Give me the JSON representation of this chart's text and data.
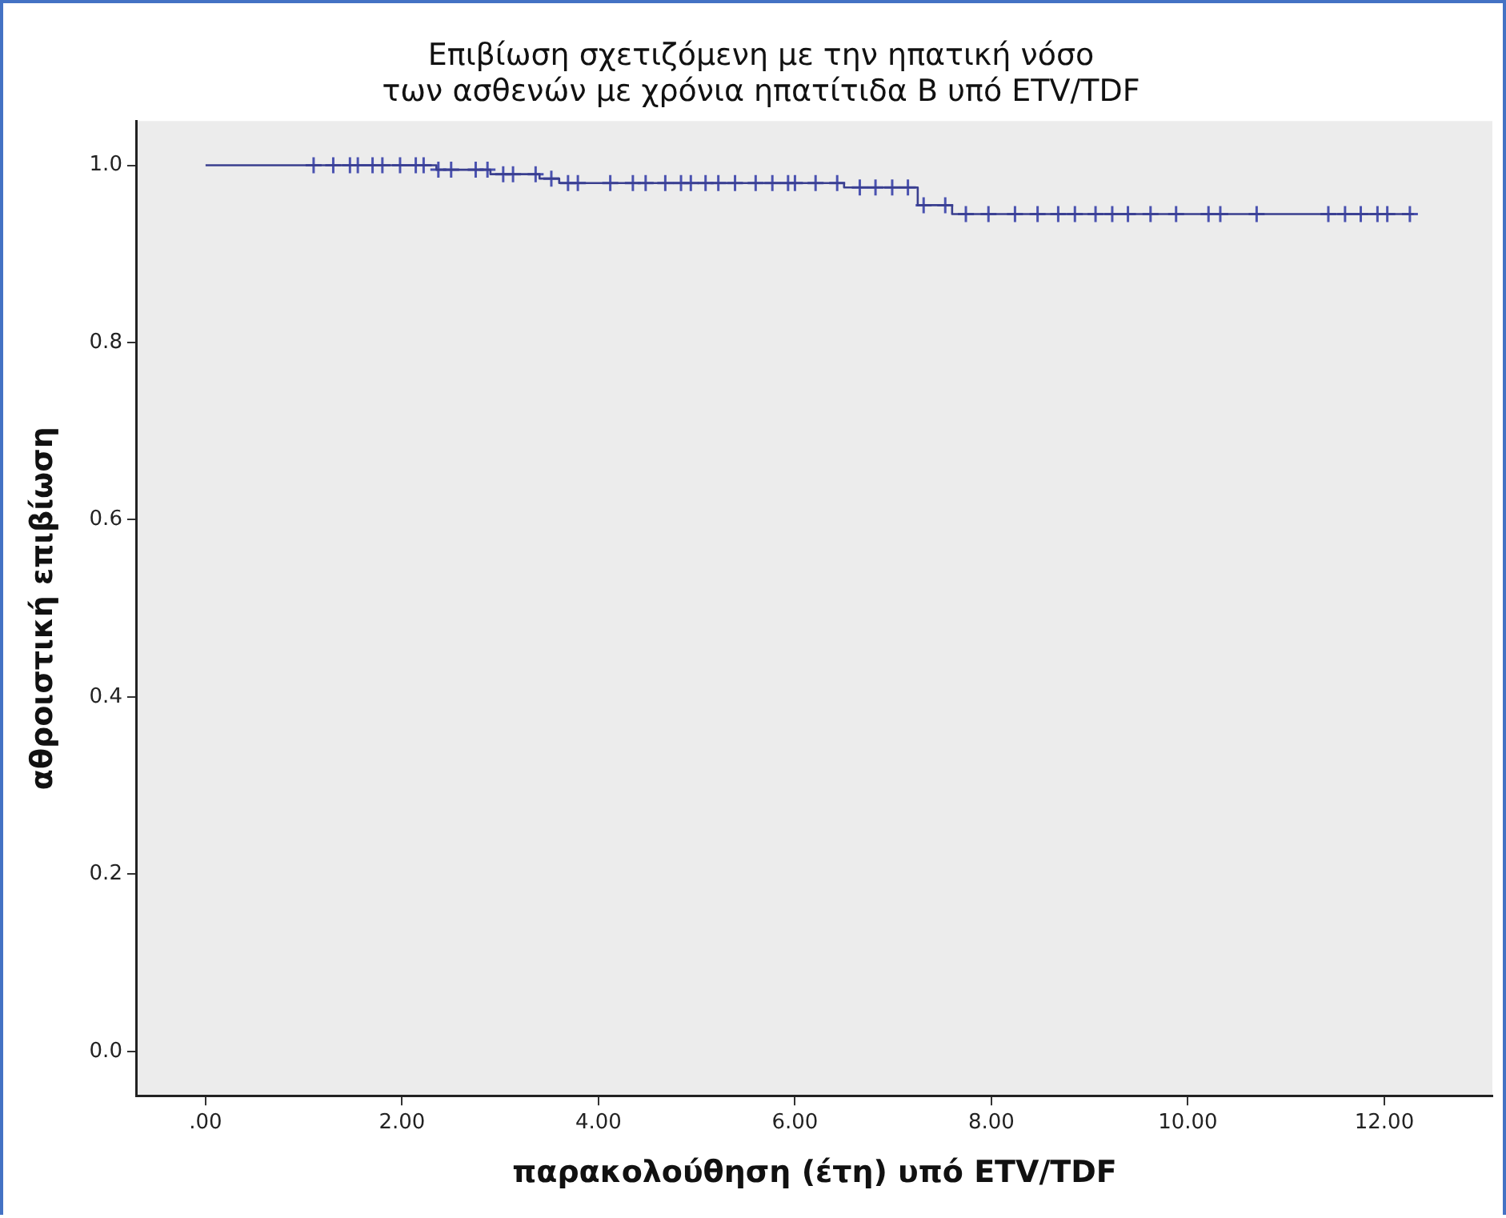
{
  "chart_data": {
    "type": "step",
    "title": "Επιβίωση σχετιζόμενη με την ηπατική νόσο\nτων ασθενών με χρόνια ηπατίτιδα B υπό ETV/TDF",
    "xlabel": "παρακολούθηση (έτη) υπό ETV/TDF",
    "ylabel": "αθροιστική επιβίωση",
    "xlim": [
      -0.7,
      13.1
    ],
    "ylim": [
      -0.05,
      1.05
    ],
    "xticks": [
      {
        "value": 0,
        "label": ".00"
      },
      {
        "value": 2,
        "label": "2.00"
      },
      {
        "value": 4,
        "label": "4.00"
      },
      {
        "value": 6,
        "label": "6.00"
      },
      {
        "value": 8,
        "label": "8.00"
      },
      {
        "value": 10,
        "label": "10.00"
      },
      {
        "value": 12,
        "label": "12.00"
      }
    ],
    "yticks": [
      {
        "value": 0,
        "label": "0.0"
      },
      {
        "value": 0.2,
        "label": "0.2"
      },
      {
        "value": 0.4,
        "label": "0.4"
      },
      {
        "value": 0.6,
        "label": "0.6"
      },
      {
        "value": 0.8,
        "label": "0.8"
      },
      {
        "value": 1,
        "label": "1.0"
      }
    ],
    "grid": false,
    "legend": false,
    "series": [
      {
        "color": "#3a3f8f",
        "x": [
          0,
          2.35,
          2.9,
          3.4,
          3.6,
          6.5,
          7.25,
          7.6,
          12.3
        ],
        "values": [
          1,
          0.995,
          0.99,
          0.985,
          0.98,
          0.975,
          0.955,
          0.945,
          0.945
        ]
      },
      {
        "type": "scatter",
        "marker": "cross",
        "color": "#4a52b0",
        "x": [
          1.1,
          1.3,
          1.47,
          1.55,
          1.7,
          1.8,
          1.98,
          2.14,
          2.22,
          2.37,
          2.5,
          2.75,
          2.87,
          3.03,
          3.13,
          3.36,
          3.52,
          3.69,
          3.79,
          4.12,
          4.35,
          4.48,
          4.68,
          4.84,
          4.94,
          5.09,
          5.22,
          5.39,
          5.6,
          5.77,
          5.93,
          6.0,
          6.21,
          6.43,
          6.66,
          6.82,
          6.99,
          7.15,
          7.31,
          7.53,
          7.74,
          7.97,
          8.24,
          8.47,
          8.68,
          8.85,
          9.06,
          9.23,
          9.39,
          9.62,
          9.88,
          10.21,
          10.33,
          10.7,
          11.43,
          11.6,
          11.76,
          11.93,
          12.03,
          12.26
        ],
        "values": [
          1,
          1,
          1,
          1,
          1,
          1,
          1,
          1,
          1,
          0.995,
          0.995,
          0.995,
          0.995,
          0.99,
          0.99,
          0.99,
          0.985,
          0.98,
          0.98,
          0.98,
          0.98,
          0.98,
          0.98,
          0.98,
          0.98,
          0.98,
          0.98,
          0.98,
          0.98,
          0.98,
          0.98,
          0.98,
          0.98,
          0.98,
          0.975,
          0.975,
          0.975,
          0.975,
          0.955,
          0.955,
          0.945,
          0.945,
          0.945,
          0.945,
          0.945,
          0.945,
          0.945,
          0.945,
          0.945,
          0.945,
          0.945,
          0.945,
          0.945,
          0.945,
          0.945,
          0.945,
          0.945,
          0.945,
          0.945,
          0.945
        ]
      }
    ]
  }
}
